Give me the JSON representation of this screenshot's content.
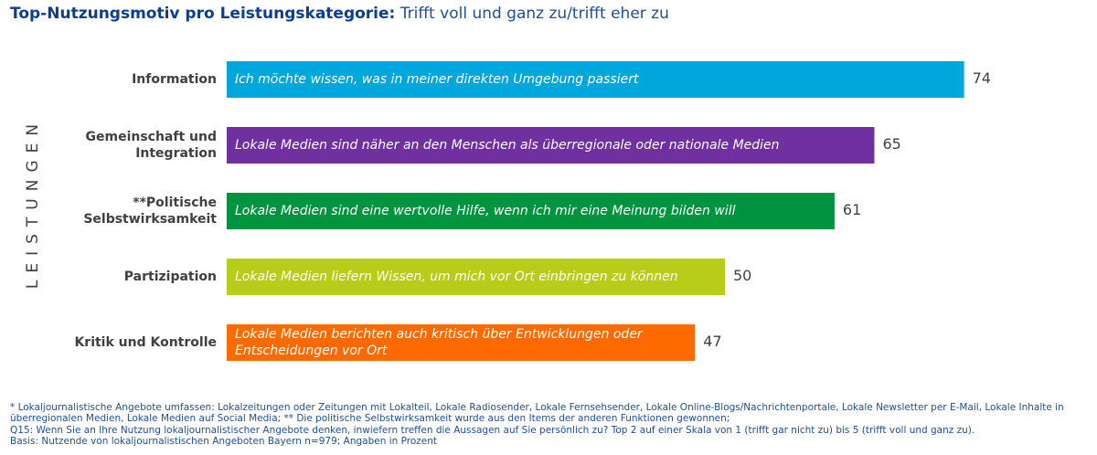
{
  "title": {
    "bold": "Top-Nutzungsmotiv pro Leistungskategorie:",
    "rest": "Trifft voll und ganz zu/trifft eher zu"
  },
  "side_label": "LEISTUNGEN",
  "chart_data": {
    "type": "bar",
    "orientation": "horizontal",
    "title": "Top-Nutzungsmotiv pro Leistungskategorie: Trifft voll und ganz zu/trifft eher zu",
    "ylabel": "LEISTUNGEN",
    "xlim": [
      0,
      100
    ],
    "grid": false,
    "categories": [
      [
        "Information"
      ],
      [
        "Gemeinschaft und",
        "Integration"
      ],
      [
        "**Politische",
        "Selbstwirksamkeit"
      ],
      [
        "Partizipation"
      ],
      [
        "Kritik und Kontrolle"
      ]
    ],
    "bar_labels": [
      [
        "Ich möchte wissen, was in meiner direkten Umgebung passiert"
      ],
      [
        "Lokale Medien sind näher an den Menschen als überregionale oder nationale Medien"
      ],
      [
        "Lokale Medien sind eine wertvolle Hilfe, wenn ich mir eine Meinung bilden will"
      ],
      [
        "Lokale Medien liefern Wissen, um mich vor Ort einbringen zu können"
      ],
      [
        "Lokale Medien berichten auch kritisch über Entwicklungen oder",
        "Entscheidungen vor Ort"
      ]
    ],
    "values": [
      74,
      65,
      61,
      50,
      47
    ],
    "colors": [
      "#00a7dd",
      "#7030a0",
      "#00943e",
      "#b8cd1a",
      "#ff6a00"
    ]
  },
  "footnotes": [
    "* Lokaljournalistische Angebote umfassen: Lokalzeitungen oder Zeitungen mit Lokalteil, Lokale Radiosender, Lokale Fernsehsender, Lokale Online-Blogs/Nachrichtenportale, Lokale Newsletter per E-Mail, Lokale Inhalte in überregionalen Medien, Lokale Medien auf Social Media; ** Die politische Selbstwirksamkeit wurde aus den Items der anderen Funktionen gewonnen;",
    "Q15: Wenn Sie an Ihre Nutzung lokaljournalistischer Angebote denken, inwiefern treffen die Aussagen auf Sie persönlich zu? Top 2 auf einer Skala von 1 (trifft gar nicht zu) bis 5 (trifft voll und ganz zu).",
    "Basis: Nutzende von lokaljournalistischen Angeboten Bayern n=979; Angaben in Prozent"
  ]
}
